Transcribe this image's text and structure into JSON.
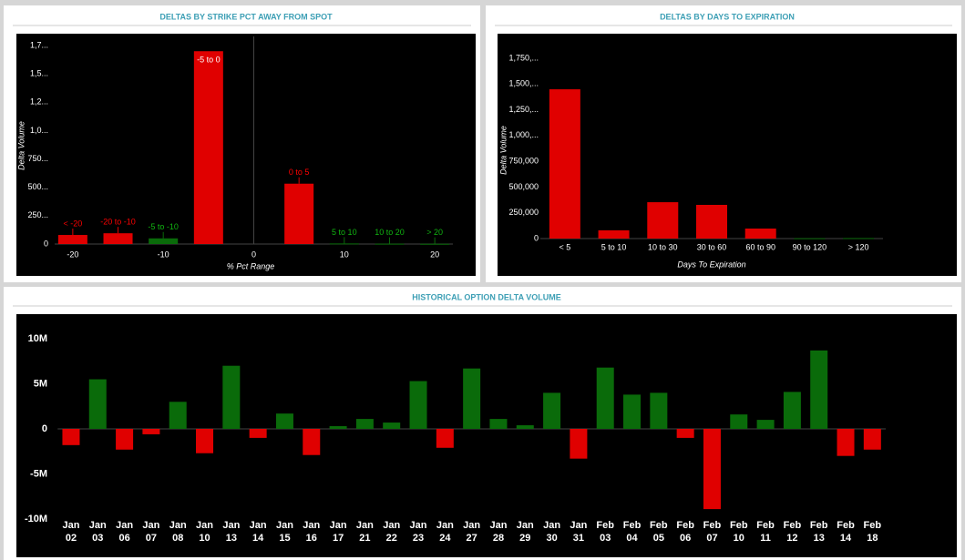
{
  "chart_data": [
    {
      "type": "bar",
      "title": "DELTAS BY STRIKE PCT AWAY FROM SPOT",
      "y_label": "Delta Volume",
      "x_label": "% Pct Range",
      "x": [
        -20,
        -15,
        -10,
        -5,
        5,
        10,
        15,
        20
      ],
      "bar_labels": [
        "< -20",
        "-20 to -10",
        "-5 to -10",
        "-5 to 0",
        "0 to 5",
        "5 to 10",
        "10 to 20",
        "> 20"
      ],
      "values": [
        80000,
        95000,
        50000,
        1700000,
        532000,
        5000,
        3000,
        2000
      ],
      "colors": [
        "#e00000",
        "#e00000",
        "#0a6b0a",
        "#e00000",
        "#e00000",
        "#0a6b0a",
        "#0a6b0a",
        "#0a6b0a"
      ],
      "xlim": [
        -22,
        22
      ],
      "xticks": [
        -20,
        -10,
        0,
        10,
        20
      ],
      "ylim": [
        0,
        1750000
      ],
      "yticks": [
        0,
        {
          "value": 250000,
          "label": "250..."
        },
        {
          "value": 500000,
          "label": "500..."
        },
        {
          "value": 750000,
          "label": "750..."
        },
        {
          "value": 1000000,
          "label": "1,0..."
        },
        {
          "value": 1250000,
          "label": "1,2..."
        },
        {
          "value": 1500000,
          "label": "1,5..."
        },
        {
          "value": 1750000,
          "label": "1,7..."
        }
      ],
      "grid": false
    },
    {
      "type": "bar",
      "title": "DELTAS BY DAYS TO EXPIRATION",
      "y_label": "Delta Volume",
      "x_label": "Days To Expiration",
      "categories": [
        "< 5",
        "5 to 10",
        "10 to 30",
        "30 to 60",
        "60 to 90",
        "90 to 120",
        "> 120"
      ],
      "values": [
        1449000,
        80000,
        353000,
        327000,
        97000,
        3000,
        5000
      ],
      "colors": [
        "#e00000",
        "#e00000",
        "#e00000",
        "#e00000",
        "#e00000",
        "#0a6b0a",
        "#0a6b0a"
      ],
      "ylim": [
        0,
        1750000
      ],
      "yticks": [
        0,
        {
          "value": 250000,
          "label": "250,000"
        },
        {
          "value": 500000,
          "label": "500,000"
        },
        {
          "value": 750000,
          "label": "750,000"
        },
        {
          "value": 1000000,
          "label": "1,000,..."
        },
        {
          "value": 1250000,
          "label": "1,250,..."
        },
        {
          "value": 1500000,
          "label": "1,500,..."
        },
        {
          "value": 1750000,
          "label": "1,750,..."
        }
      ],
      "grid": false
    },
    {
      "type": "bar",
      "title": "HISTORICAL OPTION DELTA VOLUME",
      "categories": [
        "Jan 02",
        "Jan 03",
        "Jan 06",
        "Jan 07",
        "Jan 08",
        "Jan 10",
        "Jan 13",
        "Jan 14",
        "Jan 15",
        "Jan 16",
        "Jan 17",
        "Jan 21",
        "Jan 22",
        "Jan 23",
        "Jan 24",
        "Jan 27",
        "Jan 28",
        "Jan 29",
        "Jan 30",
        "Jan 31",
        "Feb 03",
        "Feb 04",
        "Feb 05",
        "Feb 06",
        "Feb 07",
        "Feb 10",
        "Feb 11",
        "Feb 12",
        "Feb 13",
        "Feb 14",
        "Feb 18"
      ],
      "values": [
        -1800000,
        5500000,
        -2300000,
        -600000,
        3000000,
        -2700000,
        7000000,
        -1000000,
        1700000,
        -2900000,
        300000,
        1100000,
        700000,
        5300000,
        -2100000,
        6700000,
        1100000,
        400000,
        4000000,
        -3300000,
        6800000,
        3800000,
        4000000,
        -1000000,
        -8900000,
        1600000,
        1000000,
        4100000,
        8700000,
        -3000000,
        -2300000
      ],
      "positive_color": "#0a6b0a",
      "negative_color": "#e00000",
      "ylim": [
        -10000000,
        10000000
      ],
      "yticks": [
        {
          "value": -10000000,
          "label": "-10M"
        },
        {
          "value": -5000000,
          "label": "-5M"
        },
        0,
        {
          "value": 5000000,
          "label": "5M"
        },
        {
          "value": 10000000,
          "label": "10M"
        }
      ],
      "grid": false
    }
  ]
}
